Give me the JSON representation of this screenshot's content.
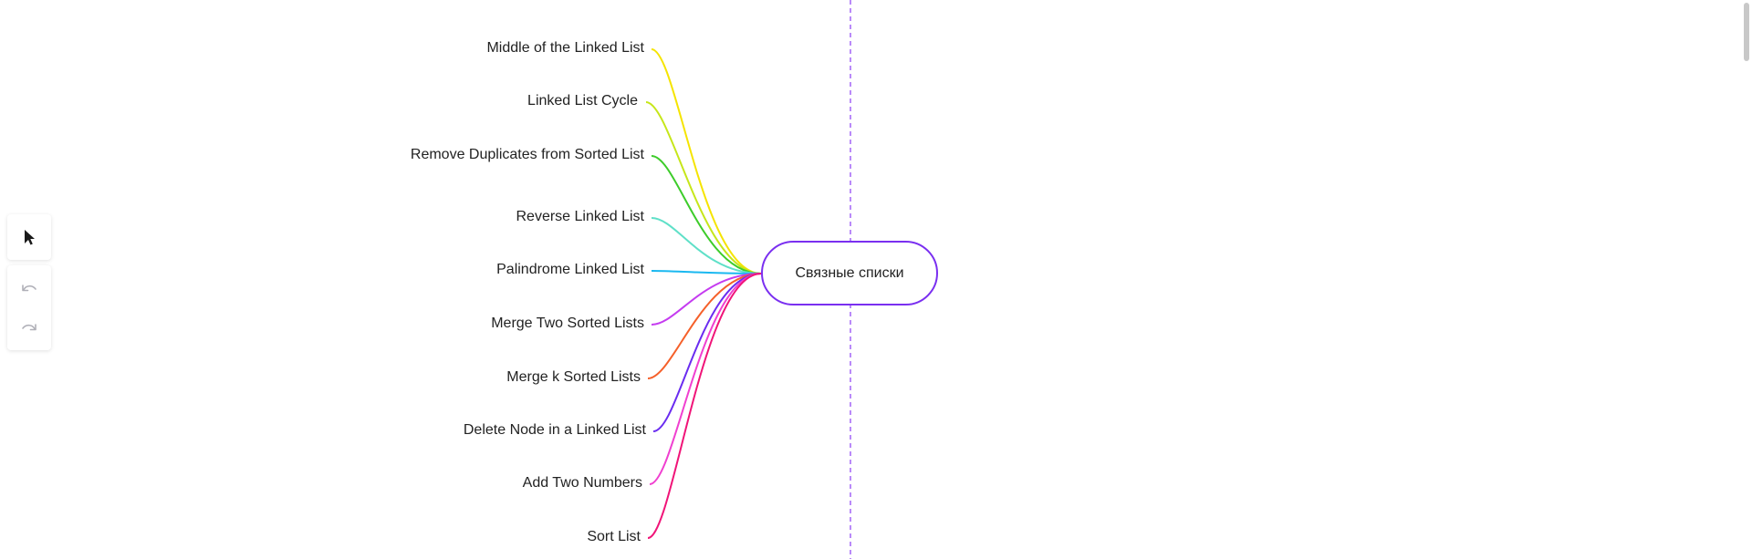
{
  "mindmap": {
    "center": {
      "label": "Связные списки",
      "border_color": "#7a2ff0"
    },
    "guide_color": "#8b3df5",
    "children": [
      {
        "label": "Middle of the Linked List",
        "color": "#f5e400"
      },
      {
        "label": "Linked List Cycle",
        "color": "#c6e61a"
      },
      {
        "label": "Remove Duplicates from Sorted List",
        "color": "#3dcc2a"
      },
      {
        "label": "Reverse Linked List",
        "color": "#5fe0c8"
      },
      {
        "label": "Palindrome Linked List",
        "color": "#1ab8f0"
      },
      {
        "label": "Merge Two Sorted Lists",
        "color": "#c53cf0"
      },
      {
        "label": "Merge k Sorted Lists",
        "color": "#f5602a"
      },
      {
        "label": "Delete Node in a Linked List",
        "color": "#6a2cf0"
      },
      {
        "label": "Add Two Numbers",
        "color": "#f040d0"
      },
      {
        "label": "Sort List",
        "color": "#f01478"
      }
    ]
  },
  "toolbar": {
    "select_icon": "cursor-arrow-icon",
    "undo_icon": "undo-icon",
    "redo_icon": "redo-icon"
  }
}
